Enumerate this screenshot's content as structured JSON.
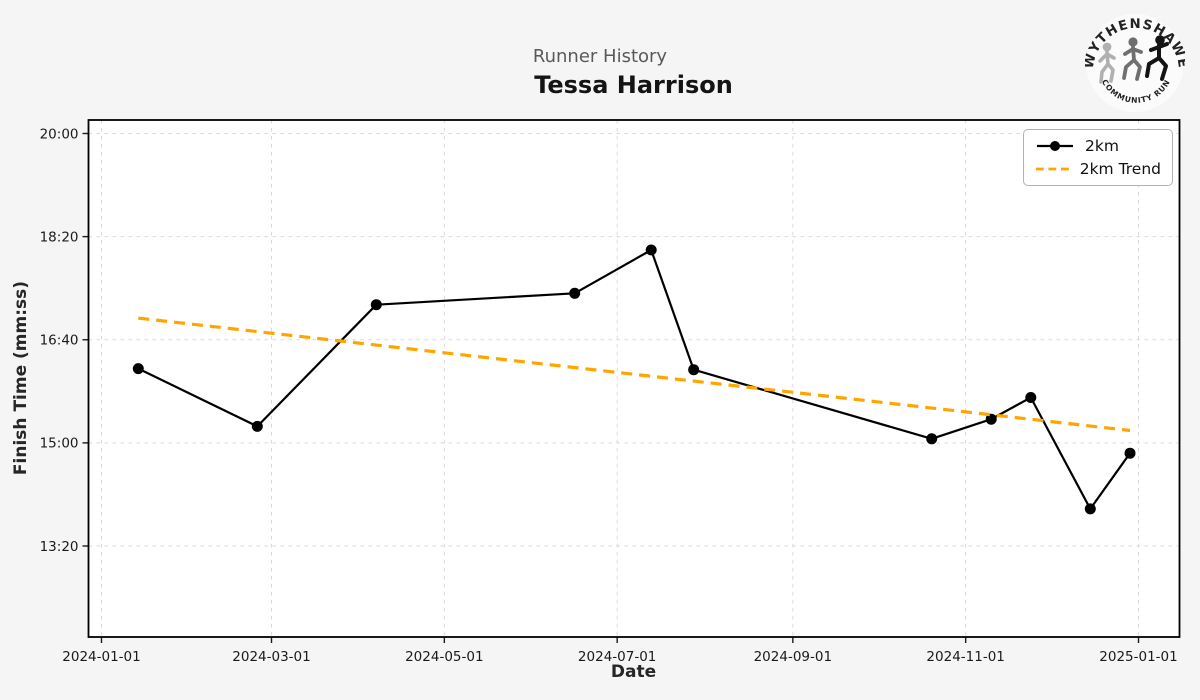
{
  "header": {
    "subtitle": "Runner History",
    "title": "Tessa Harrison"
  },
  "logo": {
    "top_text": "WYTHENSHAWE",
    "bottom_text": "COMMUNITY RUN"
  },
  "legend": {
    "position": "upper right"
  },
  "chart_data": {
    "type": "line",
    "title": "Tessa Harrison",
    "subtitle": "Runner History",
    "xlabel": "Date",
    "ylabel": "Finish Time (mm:ss)",
    "grid": true,
    "x_ticks": [
      "2024-01-01",
      "2024-03-01",
      "2024-05-01",
      "2024-07-01",
      "2024-09-01",
      "2024-11-01",
      "2025-01-01"
    ],
    "y_ticks": [
      "20:00",
      "18:20",
      "16:40",
      "15:00",
      "13:20"
    ],
    "xlim": [
      "2023-12-27",
      "2025-01-15"
    ],
    "ylim": [
      "11:53",
      "20:12"
    ],
    "colors": {
      "line": "#000000",
      "trend": "#FFA500",
      "grid": "#d9d9d9",
      "figure_bg": "#f5f5f5",
      "plot_bg": "#ffffff"
    },
    "series": [
      {
        "name": "2km",
        "style": "solid",
        "marker": "circle",
        "color": "#000000",
        "points": [
          {
            "date": "2024-01-14",
            "time": "16:12"
          },
          {
            "date": "2024-02-25",
            "time": "15:16"
          },
          {
            "date": "2024-04-07",
            "time": "17:14"
          },
          {
            "date": "2024-06-16",
            "time": "17:25"
          },
          {
            "date": "2024-07-13",
            "time": "18:07"
          },
          {
            "date": "2024-07-28",
            "time": "16:11"
          },
          {
            "date": "2024-10-20",
            "time": "15:04"
          },
          {
            "date": "2024-11-10",
            "time": "15:23"
          },
          {
            "date": "2024-11-24",
            "time": "15:44"
          },
          {
            "date": "2024-12-15",
            "time": "13:56"
          },
          {
            "date": "2024-12-29",
            "time": "14:50"
          }
        ]
      },
      {
        "name": "2km Trend",
        "style": "dashed",
        "marker": "none",
        "color": "#FFA500",
        "points": [
          {
            "date": "2024-01-14",
            "time": "17:01"
          },
          {
            "date": "2024-12-29",
            "time": "15:12"
          }
        ]
      }
    ]
  }
}
